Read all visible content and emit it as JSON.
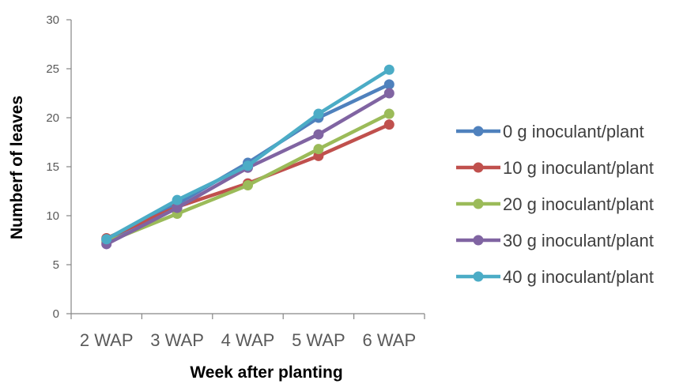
{
  "chart_data": {
    "type": "line",
    "title": "",
    "xlabel": "Week after planting",
    "ylabel": "Numberf of leaves",
    "categories": [
      "2 WAP",
      "3 WAP",
      "4 WAP",
      "5 WAP",
      "6 WAP"
    ],
    "ylim": [
      0,
      30
    ],
    "yticks": [
      0,
      5,
      10,
      15,
      20,
      25,
      30
    ],
    "grid": false,
    "legend_position": "right",
    "series": [
      {
        "name": "0 g inoculant/plant",
        "color": "#4f81bd",
        "values": [
          7.5,
          11.2,
          15.4,
          20.0,
          23.4
        ]
      },
      {
        "name": "10 g inoculant/plant",
        "color": "#c0504d",
        "values": [
          7.7,
          10.9,
          13.3,
          16.1,
          19.3
        ]
      },
      {
        "name": "20 g inoculant/plant",
        "color": "#9bbb59",
        "values": [
          7.3,
          10.2,
          13.1,
          16.8,
          20.4
        ]
      },
      {
        "name": "30 g inoculant/plant",
        "color": "#8064a2",
        "values": [
          7.1,
          10.8,
          14.9,
          18.3,
          22.5
        ]
      },
      {
        "name": "40 g inoculant/plant",
        "color": "#4bacc6",
        "values": [
          7.6,
          11.6,
          15.1,
          20.4,
          24.9
        ]
      }
    ]
  }
}
